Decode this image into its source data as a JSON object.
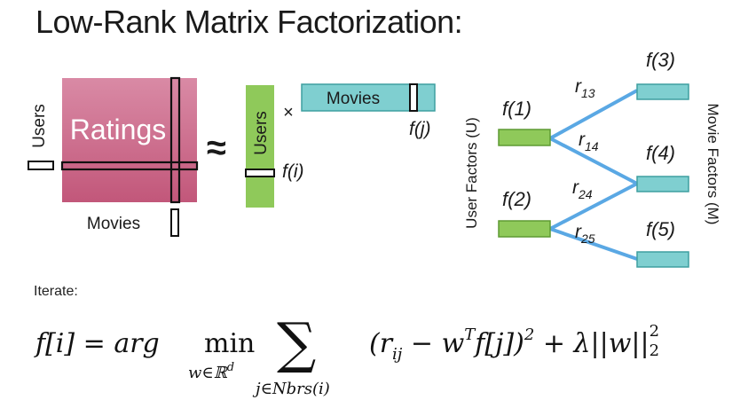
{
  "title": "Low-Rank Matrix Factorization:",
  "left": {
    "ratings": "Ratings",
    "users": "Users",
    "movies": "Movies",
    "approx": "≈",
    "times": "×",
    "user_vec_label": "Users",
    "movie_vec_label": "Movies",
    "fi": "f(i)",
    "fj": "f(j)"
  },
  "graph": {
    "user_axis": "User Factors (U)",
    "movie_axis": "Movie Factors (M)",
    "users": [
      {
        "label": "f(1)"
      },
      {
        "label": "f(2)"
      }
    ],
    "movies": [
      {
        "label": "f(3)"
      },
      {
        "label": "f(4)"
      },
      {
        "label": "f(5)"
      }
    ],
    "edges": [
      {
        "r": "r",
        "sub": "13"
      },
      {
        "r": "r",
        "sub": "14"
      },
      {
        "r": "r",
        "sub": "24"
      },
      {
        "r": "r",
        "sub": "25"
      }
    ]
  },
  "iterate": "Iterate:",
  "formula": {
    "lhs": "f[i] = arg",
    "min": "min",
    "min_under": "w∈ℝ",
    "min_under_sup": "d",
    "sum": "∑",
    "sum_under": "j∈Nbrs(i)",
    "body_open": "(r",
    "body_sub": "ij",
    "body_mid": " − w",
    "body_sup": "T",
    "body_end": "f[j])",
    "square": "2",
    "reg": " + λ||w||",
    "reg_sub": "2",
    "reg_sup": "2"
  },
  "colors": {
    "ratings_top": "#d98aa5",
    "ratings_bottom": "#c2577a",
    "green": "#8fc95a",
    "green_border": "#5e9a33",
    "teal": "#7fcfd0",
    "teal_border": "#3f9fa0",
    "edge": "#5aa8e4"
  }
}
